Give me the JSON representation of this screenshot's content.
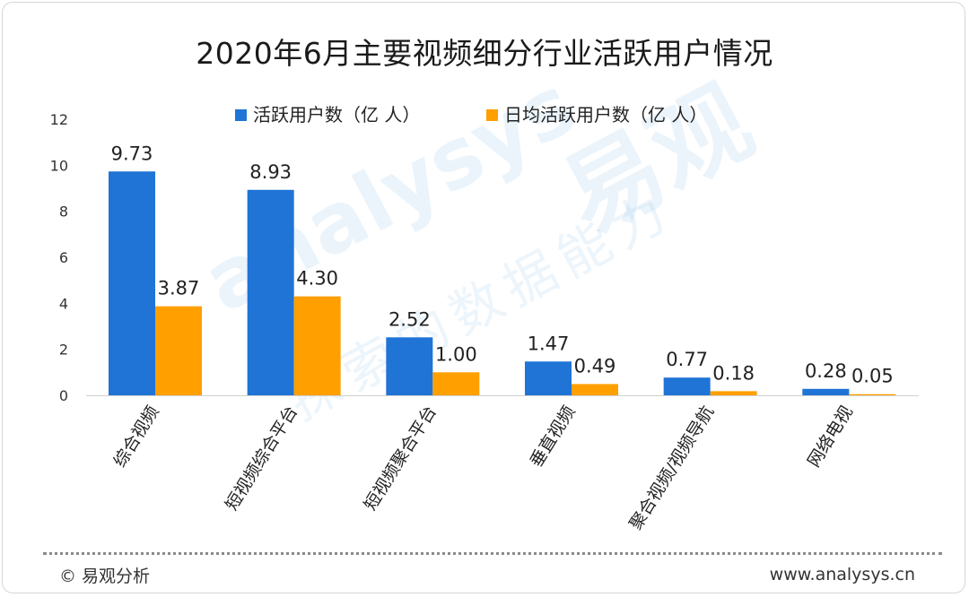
{
  "colors": {
    "active": "#1f74d6",
    "daily": "#ff9f00",
    "watermark": "#6fb4e0"
  },
  "chart_data": {
    "type": "bar",
    "title": "2020年6月主要视频细分行业活跃用户情况",
    "categories": [
      "综合视频",
      "短视频综合平台",
      "短视频聚合平台",
      "垂直视频",
      "聚合视频/视频导航",
      "网络电视"
    ],
    "series": [
      {
        "name": "活跃用户数（亿 人）",
        "values": [
          9.73,
          8.93,
          2.52,
          1.47,
          0.77,
          0.28
        ]
      },
      {
        "name": "日均活跃用户数（亿 人）",
        "values": [
          3.87,
          4.3,
          1.0,
          0.49,
          0.18,
          0.05
        ]
      }
    ],
    "value_labels": [
      [
        "9.73",
        "8.93",
        "2.52",
        "1.47",
        "0.77",
        "0.28"
      ],
      [
        "3.87",
        "4.30",
        "1.00",
        "0.49",
        "0.18",
        "0.05"
      ]
    ],
    "ylim": [
      0,
      12
    ],
    "yticks": [
      "0",
      "2",
      "4",
      "6",
      "8",
      "10",
      "12"
    ],
    "grid": false,
    "legend_position": "top"
  },
  "watermark": {
    "brand": "易观",
    "latin": "analysys",
    "slogan": "探索的数据能力"
  },
  "footer": {
    "left": "© 易观分析",
    "right": "www.analysys.cn"
  }
}
